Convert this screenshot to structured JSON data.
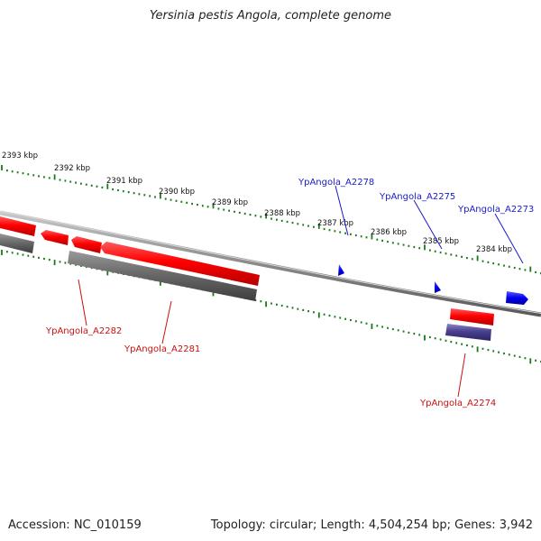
{
  "title": "Yersinia pestis Angola, complete genome",
  "footer": {
    "accession": "Accession: NC_010159",
    "stats": "Topology: circular; Length: 4,504,254 bp; Genes: 3,942"
  },
  "colors": {
    "forward_gene": "#ff0000",
    "reverse_gene": "#666666",
    "special_gene": "#4a4090",
    "small_feature": "#0000ee",
    "tick": "#1a7a1a",
    "backbone": "#888888",
    "blue_label": "#1a1acc",
    "red_label": "#cc1111"
  },
  "kbp_labels": [
    "2393 kbp",
    "2392 kbp",
    "2391 kbp",
    "2390 kbp",
    "2389 kbp",
    "2388 kbp",
    "2387 kbp",
    "2386 kbp",
    "2385 kbp",
    "2384 kbp"
  ],
  "gene_labels": {
    "blue": [
      "YpAngola_A2278",
      "YpAngola_A2275",
      "YpAngola_A2273"
    ],
    "red": [
      "YpAngola_A2282",
      "YpAngola_A2281",
      "YpAngola_A2274"
    ]
  }
}
